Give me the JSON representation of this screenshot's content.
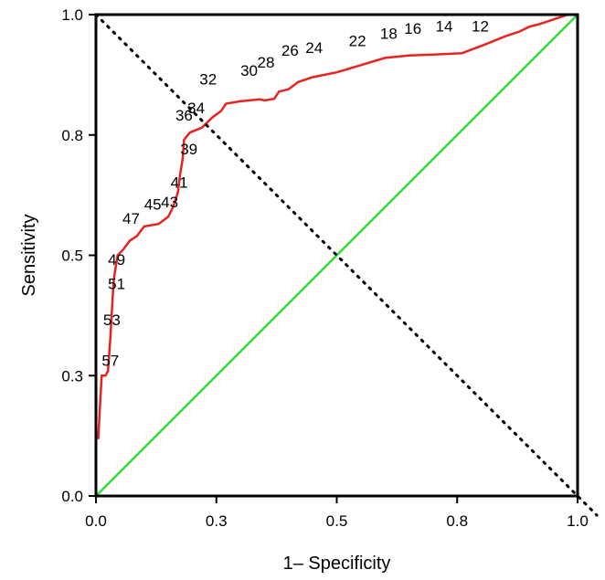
{
  "chart_data": {
    "type": "line",
    "title": "",
    "xlabel": "1– Specificity",
    "ylabel": "Sensitivity",
    "xlim": [
      0.0,
      1.0
    ],
    "ylim": [
      0.0,
      1.0
    ],
    "xticks": [
      "0.0",
      "0.3",
      "0.5",
      "0.8",
      "1.0"
    ],
    "xtick_values": [
      0.0,
      0.25,
      0.5,
      0.75,
      1.0
    ],
    "yticks": [
      "0.0",
      "0.3",
      "0.5",
      "0.8",
      "1.0"
    ],
    "ytick_values": [
      0.0,
      0.25,
      0.5,
      0.75,
      1.0
    ],
    "grid": false,
    "series": [
      {
        "color": "#e8231f",
        "style": "solid",
        "points": [
          [
            0.005,
            0.12
          ],
          [
            0.008,
            0.18
          ],
          [
            0.012,
            0.25
          ],
          [
            0.02,
            0.25
          ],
          [
            0.025,
            0.26
          ],
          [
            0.03,
            0.33
          ],
          [
            0.034,
            0.4
          ],
          [
            0.037,
            0.45
          ],
          [
            0.045,
            0.5
          ],
          [
            0.055,
            0.51
          ],
          [
            0.07,
            0.53
          ],
          [
            0.085,
            0.54
          ],
          [
            0.1,
            0.56
          ],
          [
            0.13,
            0.565
          ],
          [
            0.15,
            0.58
          ],
          [
            0.16,
            0.6
          ],
          [
            0.17,
            0.63
          ],
          [
            0.175,
            0.67
          ],
          [
            0.18,
            0.7
          ],
          [
            0.183,
            0.74
          ],
          [
            0.195,
            0.755
          ],
          [
            0.22,
            0.765
          ],
          [
            0.24,
            0.785
          ],
          [
            0.26,
            0.8
          ],
          [
            0.27,
            0.815
          ],
          [
            0.3,
            0.82
          ],
          [
            0.34,
            0.824
          ],
          [
            0.35,
            0.822
          ],
          [
            0.37,
            0.825
          ],
          [
            0.38,
            0.84
          ],
          [
            0.4,
            0.845
          ],
          [
            0.42,
            0.86
          ],
          [
            0.45,
            0.87
          ],
          [
            0.5,
            0.88
          ],
          [
            0.55,
            0.895
          ],
          [
            0.6,
            0.91
          ],
          [
            0.65,
            0.915
          ],
          [
            0.7,
            0.917
          ],
          [
            0.76,
            0.92
          ],
          [
            0.8,
            0.935
          ],
          [
            0.85,
            0.955
          ],
          [
            0.88,
            0.965
          ],
          [
            0.9,
            0.975
          ],
          [
            0.92,
            0.98
          ],
          [
            0.95,
            0.99
          ],
          [
            0.98,
            1.0
          ],
          [
            1.0,
            1.0
          ]
        ]
      },
      {
        "color": "#33dd33",
        "style": "solid",
        "points": [
          [
            0.0,
            0.0
          ],
          [
            1.0,
            1.0
          ]
        ]
      },
      {
        "color": "#000000",
        "style": "dotted",
        "points": [
          [
            0.0,
            1.0
          ],
          [
            1.04,
            -0.04
          ]
        ]
      }
    ],
    "annotations": [
      {
        "text": "12",
        "x": 0.78,
        "y": 0.965
      },
      {
        "text": "14",
        "x": 0.705,
        "y": 0.965
      },
      {
        "text": "16",
        "x": 0.64,
        "y": 0.96
      },
      {
        "text": "18",
        "x": 0.59,
        "y": 0.95
      },
      {
        "text": "22",
        "x": 0.525,
        "y": 0.935
      },
      {
        "text": "24",
        "x": 0.435,
        "y": 0.92
      },
      {
        "text": "26",
        "x": 0.385,
        "y": 0.915
      },
      {
        "text": "28",
        "x": 0.335,
        "y": 0.89
      },
      {
        "text": "30",
        "x": 0.3,
        "y": 0.873
      },
      {
        "text": "32",
        "x": 0.215,
        "y": 0.855
      },
      {
        "text": "34",
        "x": 0.19,
        "y": 0.795
      },
      {
        "text": "36",
        "x": 0.165,
        "y": 0.78
      },
      {
        "text": "39",
        "x": 0.175,
        "y": 0.71
      },
      {
        "text": "41",
        "x": 0.155,
        "y": 0.64
      },
      {
        "text": "43",
        "x": 0.135,
        "y": 0.6
      },
      {
        "text": "45",
        "x": 0.1,
        "y": 0.595
      },
      {
        "text": "47",
        "x": 0.055,
        "y": 0.565
      },
      {
        "text": "49",
        "x": 0.025,
        "y": 0.48
      },
      {
        "text": "51",
        "x": 0.025,
        "y": 0.43
      },
      {
        "text": "53",
        "x": 0.015,
        "y": 0.355
      },
      {
        "text": "57",
        "x": 0.012,
        "y": 0.27
      }
    ]
  }
}
